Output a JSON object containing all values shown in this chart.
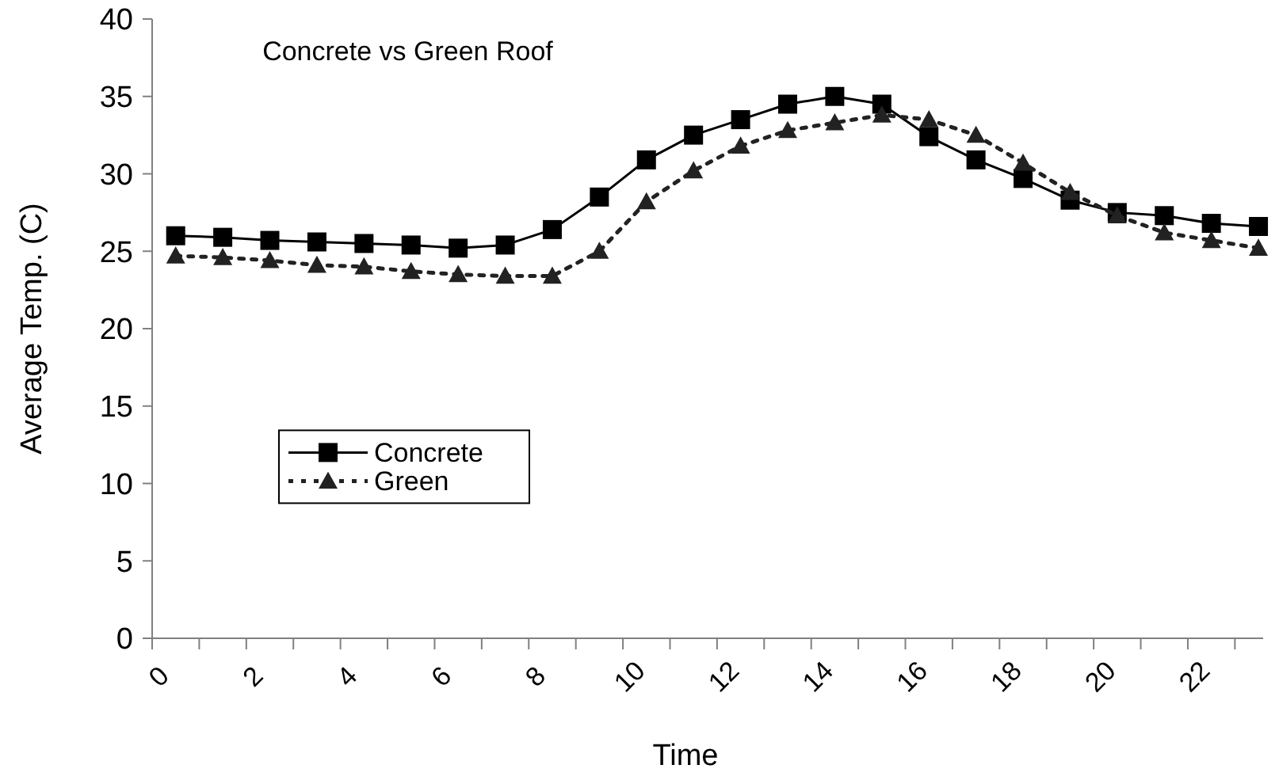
{
  "chart_data": {
    "type": "line",
    "title": "Concrete vs Green Roof",
    "xlabel": "Time",
    "ylabel": "Average Temp. (C)",
    "x": [
      0.5,
      1.5,
      2.5,
      3.5,
      4.5,
      5.5,
      6.5,
      7.5,
      8.5,
      9.5,
      10.5,
      11.5,
      12.5,
      13.5,
      14.5,
      15.5,
      16.5,
      17.5,
      18.5,
      19.5,
      20.5,
      21.5,
      22.5,
      23.5
    ],
    "xlim": [
      0,
      23.6
    ],
    "xticks": [
      0,
      {
        "value": 1,
        "label": null
      },
      2,
      {
        "value": 3,
        "label": null
      },
      4,
      {
        "value": 5,
        "label": null
      },
      6,
      {
        "value": 7,
        "label": null
      },
      8,
      {
        "value": 9,
        "label": null
      },
      10,
      {
        "value": 11,
        "label": null
      },
      12,
      {
        "value": 13,
        "label": null
      },
      14,
      {
        "value": 15,
        "label": null
      },
      16,
      {
        "value": 17,
        "label": null
      },
      18,
      {
        "value": 19,
        "label": null
      },
      20,
      {
        "value": 21,
        "label": null
      },
      22,
      {
        "value": 23,
        "label": null
      }
    ],
    "ylim": [
      0,
      40
    ],
    "yticks": [
      0,
      5,
      10,
      15,
      20,
      25,
      30,
      35,
      40
    ],
    "series": [
      {
        "name": "Concrete",
        "color": "#000000",
        "marker": "square",
        "line_style": "solid",
        "values": [
          26.0,
          25.9,
          25.7,
          25.6,
          25.5,
          25.4,
          25.2,
          25.4,
          26.4,
          28.5,
          30.9,
          32.5,
          33.5,
          34.5,
          35.0,
          34.5,
          32.4,
          30.9,
          29.7,
          28.3,
          27.5,
          27.3,
          26.8,
          26.6
        ]
      },
      {
        "name": "Green",
        "color": "#222222",
        "marker": "triangle",
        "line_style": "dotted",
        "values": [
          24.7,
          24.6,
          24.4,
          24.1,
          24.0,
          23.7,
          23.5,
          23.4,
          23.4,
          25.0,
          28.2,
          30.2,
          31.8,
          32.8,
          33.3,
          33.8,
          33.5,
          32.5,
          30.7,
          28.8,
          27.3,
          26.2,
          25.7,
          25.2
        ]
      }
    ],
    "legend": "left",
    "grid": false
  }
}
